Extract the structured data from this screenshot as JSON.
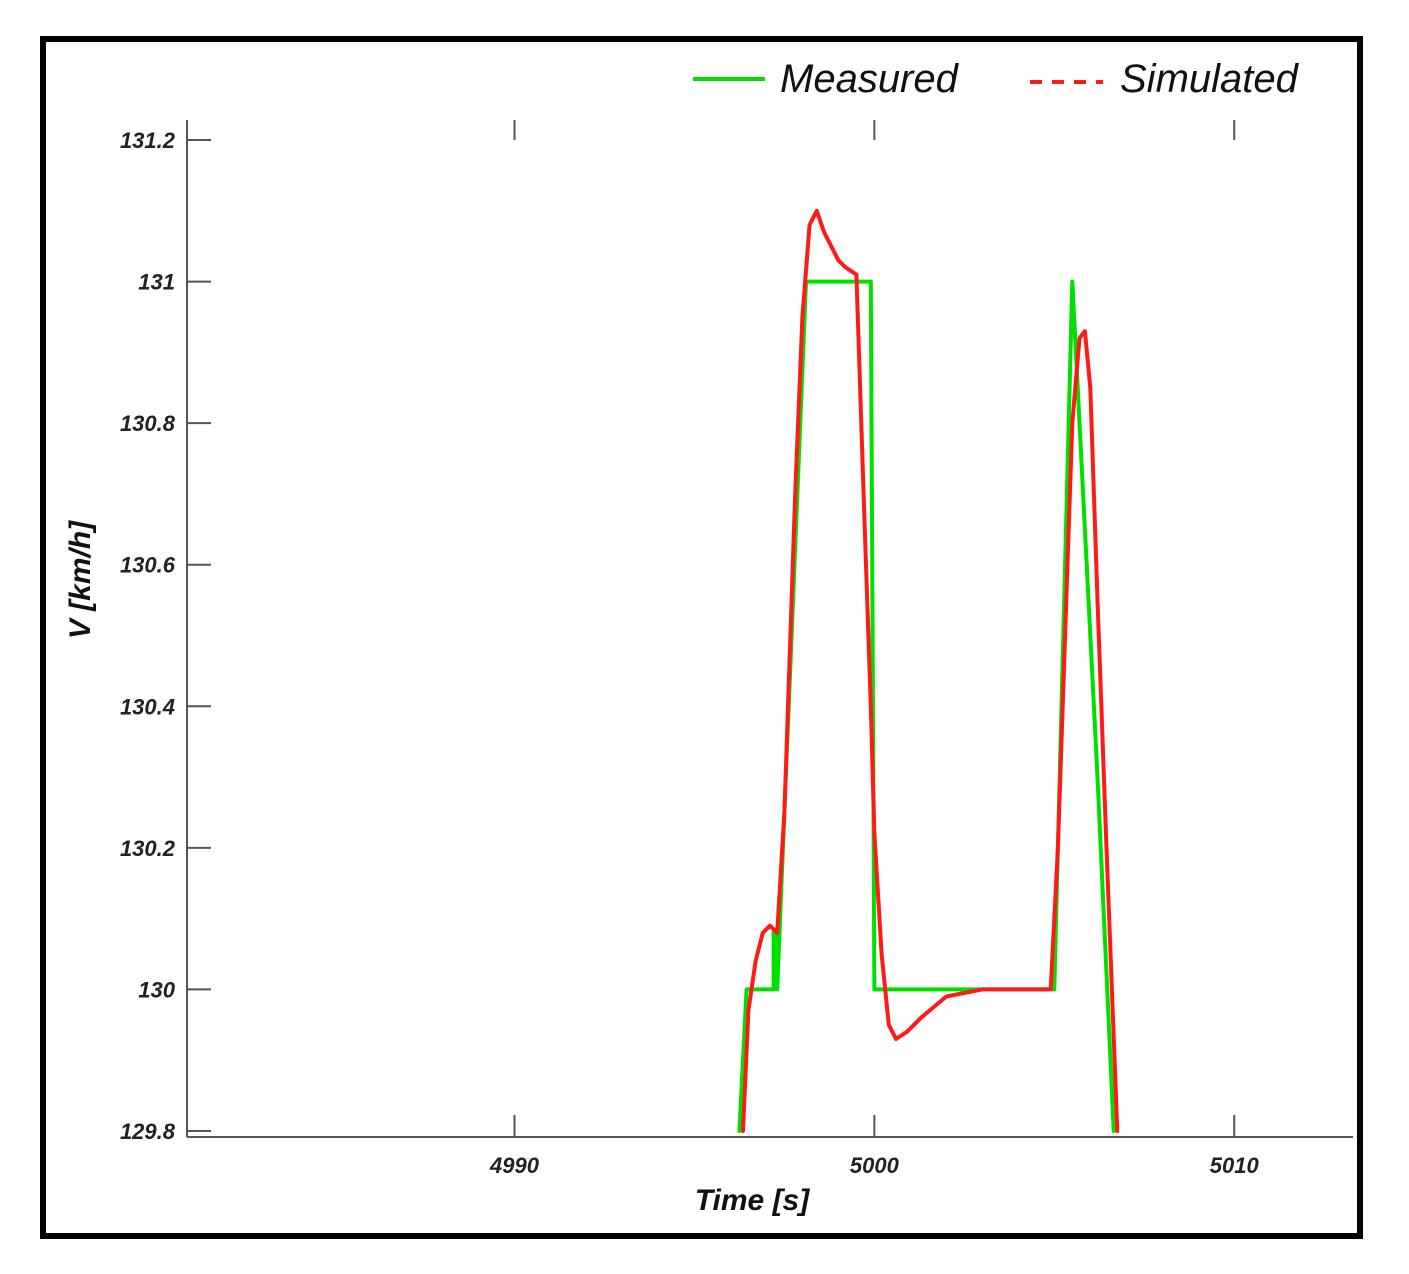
{
  "chart_data": {
    "type": "line",
    "title": "",
    "xlabel": "Time [s]",
    "ylabel": "V [km/h]",
    "xlim": [
      4980.9,
      5013.3
    ],
    "ylim": [
      129.8,
      131.2
    ],
    "xticks": [
      4990,
      5000,
      5010
    ],
    "yticks": [
      129.8,
      130,
      130.2,
      130.4,
      130.6,
      130.8,
      131,
      131.2
    ],
    "xtick_labels": [
      "4990",
      "5000",
      "5010"
    ],
    "ytick_labels": [
      "129.8",
      "130",
      "130.2",
      "130.4",
      "130.6",
      "130.8",
      "131",
      "131.2"
    ],
    "grid": false,
    "legend_position": "top-right",
    "series": [
      {
        "name": "Measured",
        "color": "#00e000",
        "style": "solid",
        "x": [
          4996.25,
          4996.45,
          4997.2,
          4997.2,
          4997.3,
          4997.3,
          4998.1,
          4999.9,
          5000.0,
          5005.0,
          5005.4,
          5005.5,
          5005.7,
          5006.2,
          5006.65
        ],
        "y": [
          129.8,
          130.0,
          130.0,
          130.08,
          130.08,
          130.0,
          131.0,
          131.0,
          130.0,
          130.0,
          130.8,
          131.0,
          130.8,
          130.3,
          129.8
        ]
      },
      {
        "name": "Simulated",
        "color": "#ff1a1a",
        "style": "solid",
        "x": [
          4996.35,
          4996.5,
          4996.7,
          4996.9,
          4997.1,
          4997.3,
          4997.5,
          4997.8,
          4998.0,
          4998.2,
          4998.4,
          4998.6,
          4998.8,
          4999.0,
          4999.2,
          4999.5,
          4999.7,
          4999.9,
          5000.0,
          5000.2,
          5000.4,
          5000.6,
          5000.9,
          5001.3,
          5002.0,
          5003.0,
          5004.0,
          5004.9,
          5005.1,
          5005.3,
          5005.5,
          5005.7,
          5005.85,
          5006.0,
          5006.2,
          5006.45,
          5006.75
        ],
        "y": [
          129.8,
          129.97,
          130.04,
          130.08,
          130.09,
          130.08,
          130.25,
          130.7,
          130.95,
          131.08,
          131.1,
          131.07,
          131.05,
          131.03,
          131.02,
          131.01,
          130.7,
          130.4,
          130.22,
          130.05,
          129.95,
          129.93,
          129.94,
          129.96,
          129.99,
          130.0,
          130.0,
          130.0,
          130.2,
          130.5,
          130.8,
          130.92,
          130.93,
          130.85,
          130.55,
          130.2,
          129.8
        ]
      }
    ]
  }
}
